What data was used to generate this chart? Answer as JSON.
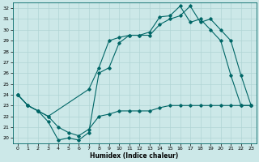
{
  "xlabel": "Humidex (Indice chaleur)",
  "background_color": "#cce8e8",
  "grid_color": "#b0d4d4",
  "line_color": "#006666",
  "xlim": [
    -0.5,
    23.5
  ],
  "ylim": [
    19.5,
    32.5
  ],
  "xticks": [
    0,
    1,
    2,
    3,
    4,
    5,
    6,
    7,
    8,
    9,
    10,
    11,
    12,
    13,
    14,
    15,
    16,
    17,
    18,
    19,
    20,
    21,
    22,
    23
  ],
  "yticks": [
    20,
    21,
    22,
    23,
    24,
    25,
    26,
    27,
    28,
    29,
    30,
    31,
    32
  ],
  "line1_x": [
    0,
    1,
    2,
    3,
    4,
    5,
    6,
    7,
    8,
    9,
    10,
    11,
    12,
    13,
    14,
    15,
    16,
    17,
    18,
    19,
    20,
    21,
    22,
    23
  ],
  "line1_y": [
    24.0,
    23.0,
    22.5,
    22.0,
    21.0,
    20.5,
    20.2,
    20.8,
    22.0,
    22.2,
    22.5,
    22.5,
    22.5,
    22.5,
    22.8,
    23.0,
    23.0,
    23.0,
    23.0,
    23.0,
    23.0,
    23.0,
    23.0,
    23.0
  ],
  "line2_x": [
    0,
    1,
    2,
    3,
    4,
    5,
    6,
    7,
    8,
    9,
    10,
    11,
    12,
    13,
    14,
    15,
    16,
    17,
    18,
    19,
    20,
    21,
    22,
    23
  ],
  "line2_y": [
    24.0,
    23.0,
    22.5,
    21.5,
    19.8,
    20.0,
    19.8,
    20.5,
    26.0,
    26.5,
    28.8,
    29.5,
    29.5,
    29.8,
    31.2,
    31.3,
    32.2,
    30.7,
    31.0,
    30.0,
    29.0,
    25.8,
    23.0,
    23.0
  ],
  "line3_x": [
    0,
    1,
    2,
    3,
    7,
    8,
    9,
    10,
    11,
    12,
    13,
    14,
    15,
    16,
    17,
    18,
    19,
    20,
    21,
    22,
    23
  ],
  "line3_y": [
    24.0,
    23.0,
    22.5,
    22.0,
    24.5,
    26.5,
    29.0,
    29.3,
    29.5,
    29.5,
    29.5,
    30.5,
    31.0,
    31.3,
    32.2,
    30.7,
    31.0,
    30.0,
    29.0,
    25.8,
    23.0
  ]
}
